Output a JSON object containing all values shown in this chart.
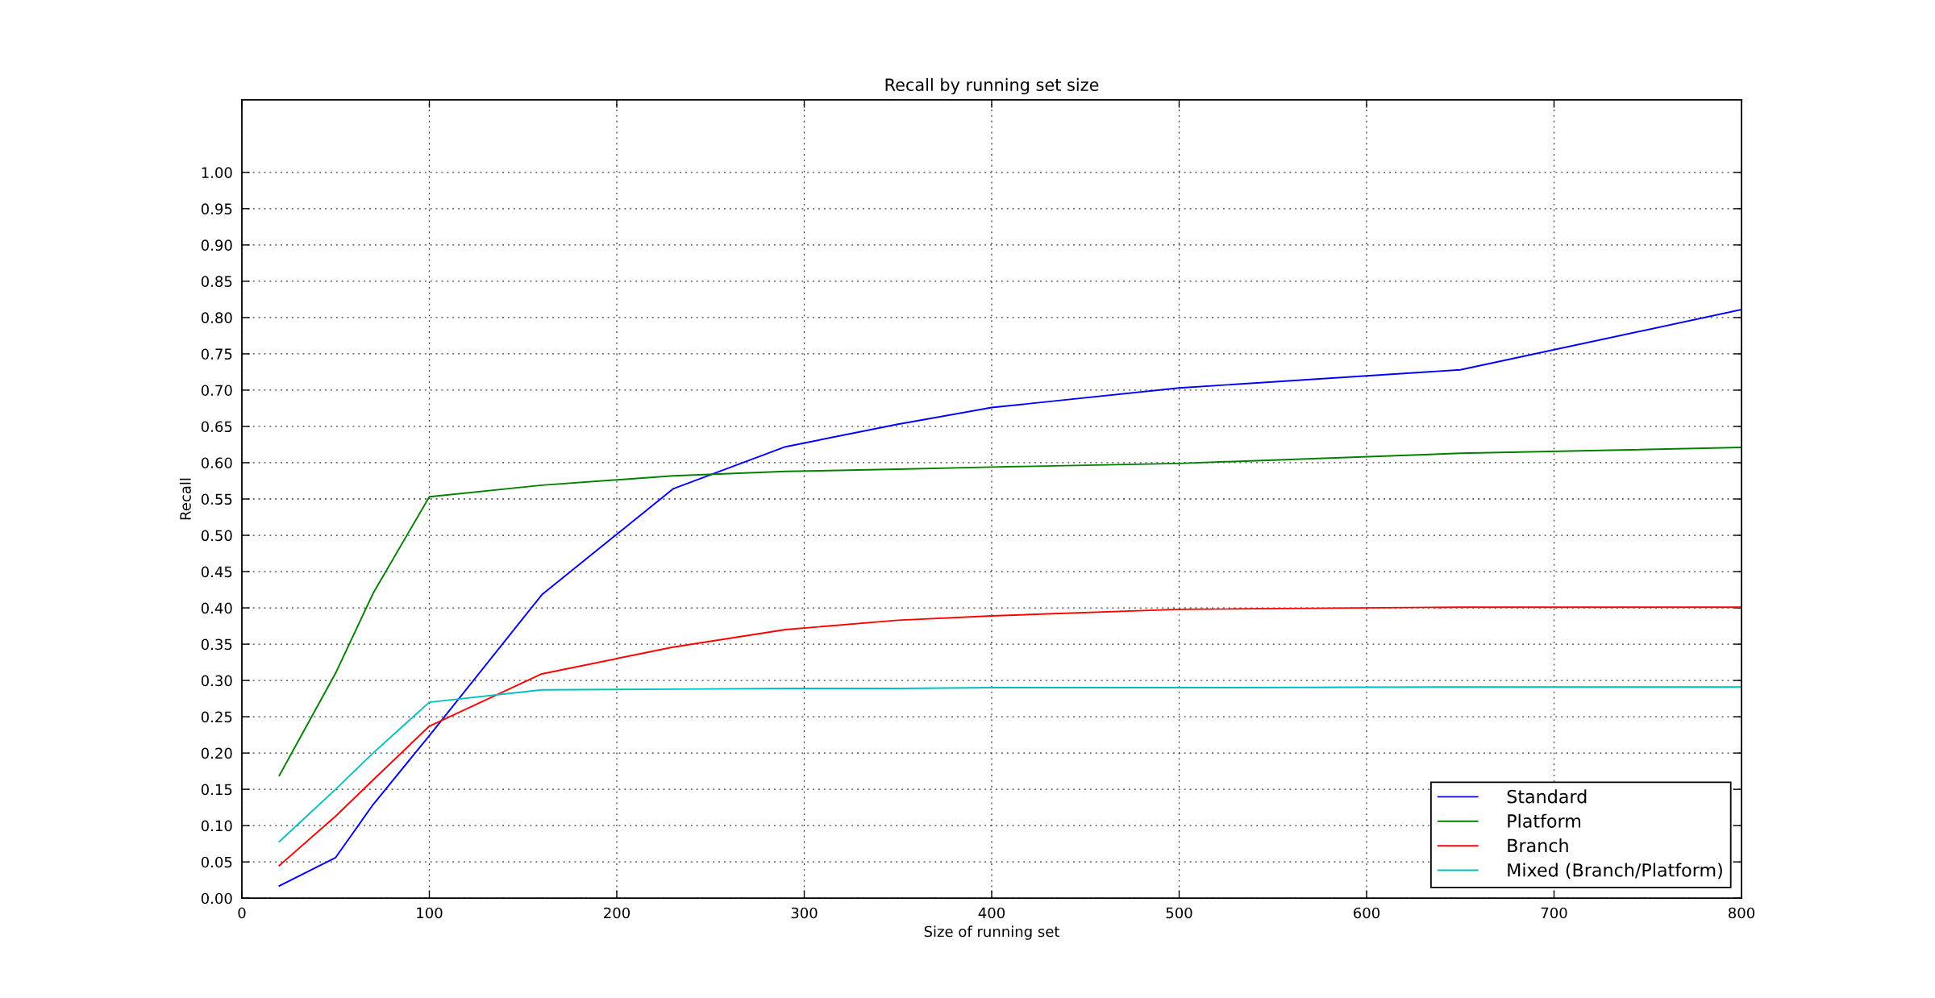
{
  "chart_data": {
    "type": "line",
    "title": "Recall by running set size",
    "xlabel": "Size of running set",
    "ylabel": "Recall",
    "x": [
      20,
      50,
      70,
      100,
      160,
      230,
      290,
      350,
      400,
      500,
      650,
      800
    ],
    "series": [
      {
        "name": "Standard",
        "color": "#0000ff",
        "values": [
          0.017,
          0.056,
          0.129,
          0.224,
          0.418,
          0.564,
          0.622,
          0.653,
          0.676,
          0.703,
          0.728,
          0.811
        ]
      },
      {
        "name": "Platform",
        "color": "#008000",
        "values": [
          0.169,
          0.31,
          0.42,
          0.553,
          0.569,
          0.582,
          0.588,
          0.591,
          0.594,
          0.599,
          0.613,
          0.621
        ]
      },
      {
        "name": "Branch",
        "color": "#ff0000",
        "values": [
          0.045,
          0.113,
          0.163,
          0.237,
          0.309,
          0.346,
          0.37,
          0.383,
          0.389,
          0.398,
          0.401,
          0.401
        ]
      },
      {
        "name": "Mixed (Branch/Platform)",
        "color": "#00bfbf",
        "values": [
          0.078,
          0.15,
          0.2,
          0.27,
          0.287,
          0.288,
          0.289,
          0.289,
          0.29,
          0.29,
          0.291,
          0.291
        ]
      }
    ],
    "xlim": [
      0,
      800
    ],
    "ylim": [
      0,
      1.1
    ],
    "xticks": [
      0,
      100,
      200,
      300,
      400,
      500,
      600,
      700,
      800
    ],
    "yticks": [
      {
        "value": 0,
        "label": "0.00"
      },
      {
        "value": 0.05,
        "label": "0.05"
      },
      {
        "value": 0.1,
        "label": "0.10"
      },
      {
        "value": 0.15,
        "label": "0.15"
      },
      {
        "value": 0.2,
        "label": "0.20"
      },
      {
        "value": 0.25,
        "label": "0.25"
      },
      {
        "value": 0.3,
        "label": "0.30"
      },
      {
        "value": 0.35,
        "label": "0.35"
      },
      {
        "value": 0.4,
        "label": "0.40"
      },
      {
        "value": 0.45,
        "label": "0.45"
      },
      {
        "value": 0.5,
        "label": "0.50"
      },
      {
        "value": 0.55,
        "label": "0.55"
      },
      {
        "value": 0.6,
        "label": "0.60"
      },
      {
        "value": 0.65,
        "label": "0.65"
      },
      {
        "value": 0.7,
        "label": "0.70"
      },
      {
        "value": 0.75,
        "label": "0.75"
      },
      {
        "value": 0.8,
        "label": "0.80"
      },
      {
        "value": 0.85,
        "label": "0.85"
      },
      {
        "value": 0.9,
        "label": "0.90"
      },
      {
        "value": 0.95,
        "label": "0.95"
      },
      {
        "value": 1.0,
        "label": "1.00"
      }
    ],
    "grid": true,
    "legend": "bottom right",
    "line_style": "solid"
  }
}
